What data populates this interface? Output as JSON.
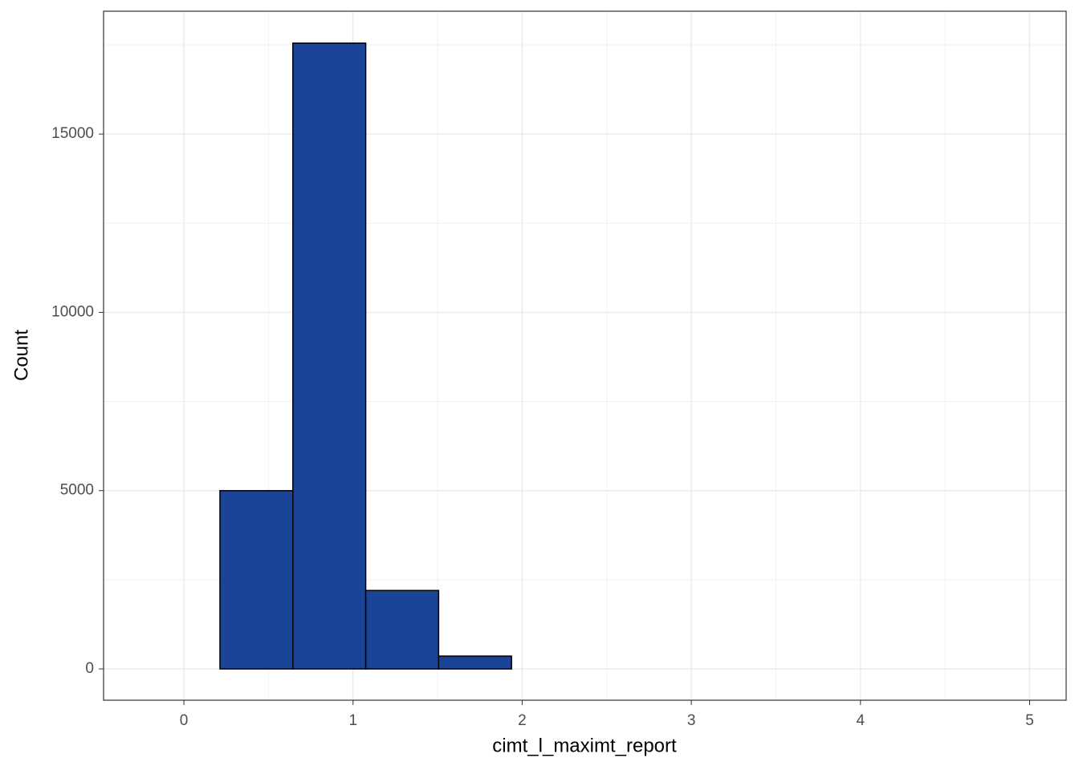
{
  "chart_data": {
    "type": "histogram",
    "x_label": "cimt_l_maximt_report",
    "y_label": "Count",
    "bins": [
      -0.218,
      0.213,
      0.644,
      1.075,
      1.506,
      1.937,
      2.368,
      2.799,
      3.23,
      3.661,
      4.092,
      4.523,
      4.954
    ],
    "values": [
      0,
      5000,
      17550,
      2200,
      360,
      0,
      0,
      0,
      0,
      0,
      0,
      0
    ],
    "color": "#1a4498",
    "edge_color": "#000000",
    "xlim": [
      -0.475,
      5.216
    ],
    "ylim": [
      -877,
      18444
    ],
    "xticks": [
      0,
      1,
      2,
      3,
      4,
      5
    ],
    "yticks": [
      0,
      5000,
      10000,
      15000
    ],
    "x_minor_grid": [
      -0.5,
      0.5,
      1.5,
      2.5,
      3.5,
      4.5
    ],
    "y_minor_grid": [
      2500,
      7500,
      12500,
      17500
    ],
    "grid": true
  }
}
